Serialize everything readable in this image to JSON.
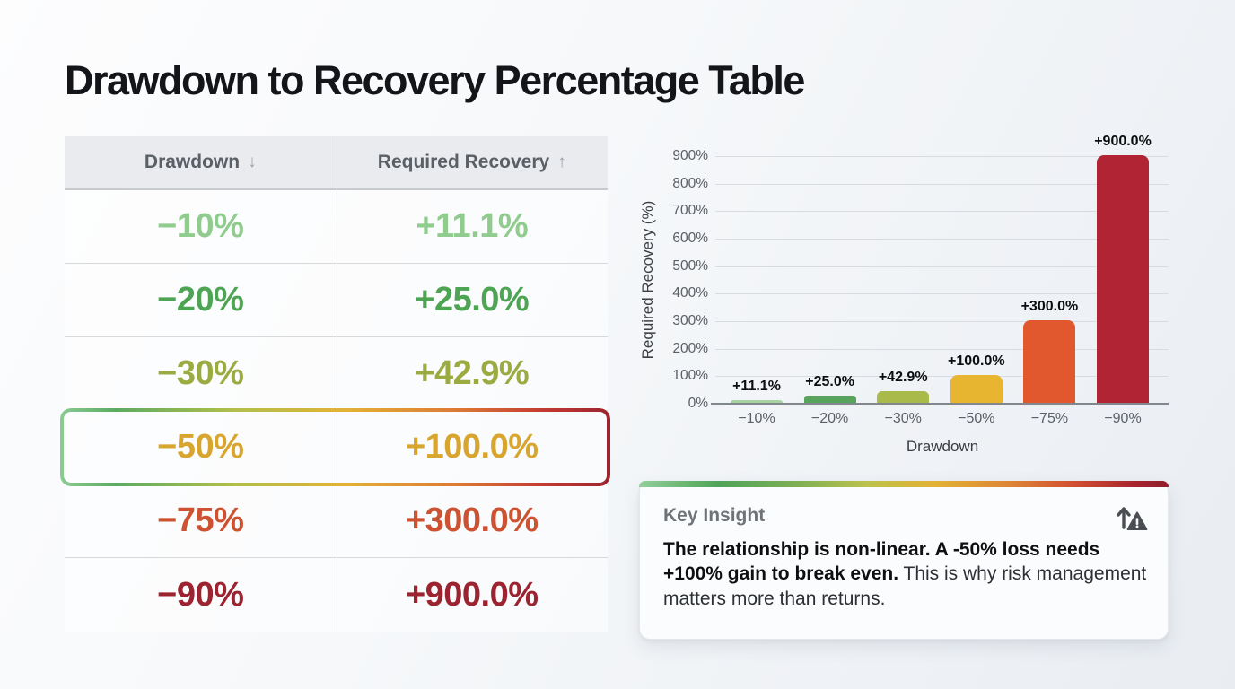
{
  "page": {
    "title": "Drawdown to Recovery Percentage Table"
  },
  "table": {
    "headers": [
      {
        "label": "Drawdown",
        "arrow": "↓",
        "icon": "sort-descending-arrow-icon"
      },
      {
        "label": "Required Recovery",
        "arrow": "↑",
        "icon": "sort-ascending-arrow-icon"
      }
    ],
    "rows": [
      {
        "drawdown": "−10%",
        "recovery": "+11.1%",
        "color": "#90cc8e",
        "highlight": false
      },
      {
        "drawdown": "−20%",
        "recovery": "+25.0%",
        "color": "#4da452",
        "highlight": false
      },
      {
        "drawdown": "−30%",
        "recovery": "+42.9%",
        "color": "#9cab41",
        "highlight": false
      },
      {
        "drawdown": "−50%",
        "recovery": "+100.0%",
        "color": "#d8a52f",
        "highlight": true
      },
      {
        "drawdown": "−75%",
        "recovery": "+300.0%",
        "color": "#cc5231",
        "highlight": false
      },
      {
        "drawdown": "−90%",
        "recovery": "+900.0%",
        "color": "#9c2330",
        "highlight": false
      }
    ]
  },
  "chart_data": {
    "type": "bar",
    "categories": [
      "−10%",
      "−20%",
      "−30%",
      "−50%",
      "−75%",
      "−90%"
    ],
    "values": [
      11.1,
      25.0,
      42.9,
      100.0,
      300.0,
      900.0
    ],
    "bar_labels": [
      "+11.1%",
      "+25.0%",
      "+42.9%",
      "+100.0%",
      "+300.0%",
      "+900.0%"
    ],
    "bar_colors": [
      "#a7d3a0",
      "#57a55c",
      "#a9ba4a",
      "#e7b52f",
      "#e2582e",
      "#b02433"
    ],
    "title": "",
    "xlabel": "Drawdown",
    "ylabel": "Required Recovery (%)",
    "ylim": [
      0,
      900
    ],
    "ytick_step": 100,
    "ytick_suffix": "%",
    "grid": true,
    "legend": null
  },
  "insight": {
    "title": "Key Insight",
    "icon": "trend-up-warning-icon",
    "text_bold": "The relationship is non-linear. A -50% loss needs +100% gain to break even.",
    "text_regular": " This is why risk management matters more than returns."
  },
  "colors": {
    "risk_gradient": [
      "#8bcb92",
      "#4ea35a",
      "#b3bf48",
      "#e3b136",
      "#e0662f",
      "#a6232f"
    ],
    "header_bg": "#e9ebee",
    "axis_text": "#5b6066"
  }
}
